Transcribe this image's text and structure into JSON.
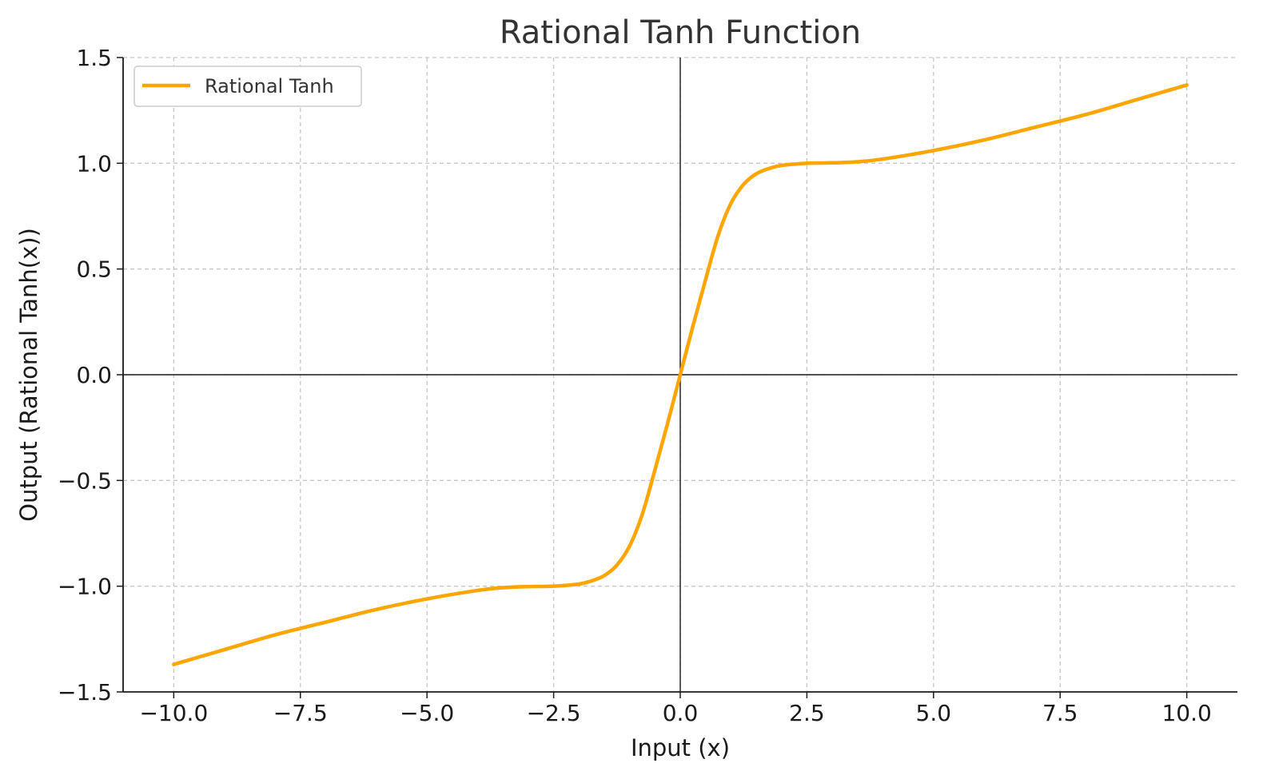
{
  "chart_data": {
    "type": "line",
    "title": "Rational Tanh Function",
    "xlabel": "Input (x)",
    "ylabel": "Output (Rational Tanh(x))",
    "xlim": [
      -11,
      11
    ],
    "ylim": [
      -1.5,
      1.5
    ],
    "x_ticks": [
      -10.0,
      -7.5,
      -5.0,
      -2.5,
      0.0,
      2.5,
      5.0,
      7.5,
      10.0
    ],
    "x_tick_labels": [
      "−10.0",
      "−7.5",
      "−5.0",
      "−2.5",
      "0.0",
      "2.5",
      "5.0",
      "7.5",
      "10.0"
    ],
    "y_ticks": [
      -1.5,
      -1.0,
      -0.5,
      0.0,
      0.5,
      1.0,
      1.5
    ],
    "y_tick_labels": [
      "−1.5",
      "−1.0",
      "−0.5",
      "0.0",
      "0.5",
      "1.0",
      "1.5"
    ],
    "grid": true,
    "legend_position": "top-left",
    "series": [
      {
        "name": "Rational Tanh",
        "color": "#FFA500",
        "x": [
          -10,
          -9,
          -8,
          -7,
          -6,
          -5,
          -4,
          -3.5,
          -3,
          -2.5,
          -2,
          -1.75,
          -1.5,
          -1.25,
          -1,
          -0.75,
          -0.5,
          -0.25,
          0,
          0.25,
          0.5,
          0.75,
          1,
          1.25,
          1.5,
          1.75,
          2,
          2.5,
          3,
          3.5,
          4,
          5,
          6,
          7,
          8,
          9,
          10
        ],
        "y": [
          -1.37,
          -1.3,
          -1.23,
          -1.17,
          -1.11,
          -1.06,
          -1.02,
          -1.007,
          -1.002,
          -1.0,
          -0.99,
          -0.975,
          -0.95,
          -0.9,
          -0.81,
          -0.66,
          -0.45,
          -0.23,
          0.0,
          0.23,
          0.45,
          0.66,
          0.81,
          0.9,
          0.95,
          0.975,
          0.99,
          1.0,
          1.002,
          1.007,
          1.02,
          1.06,
          1.11,
          1.17,
          1.23,
          1.3,
          1.37
        ]
      }
    ]
  }
}
